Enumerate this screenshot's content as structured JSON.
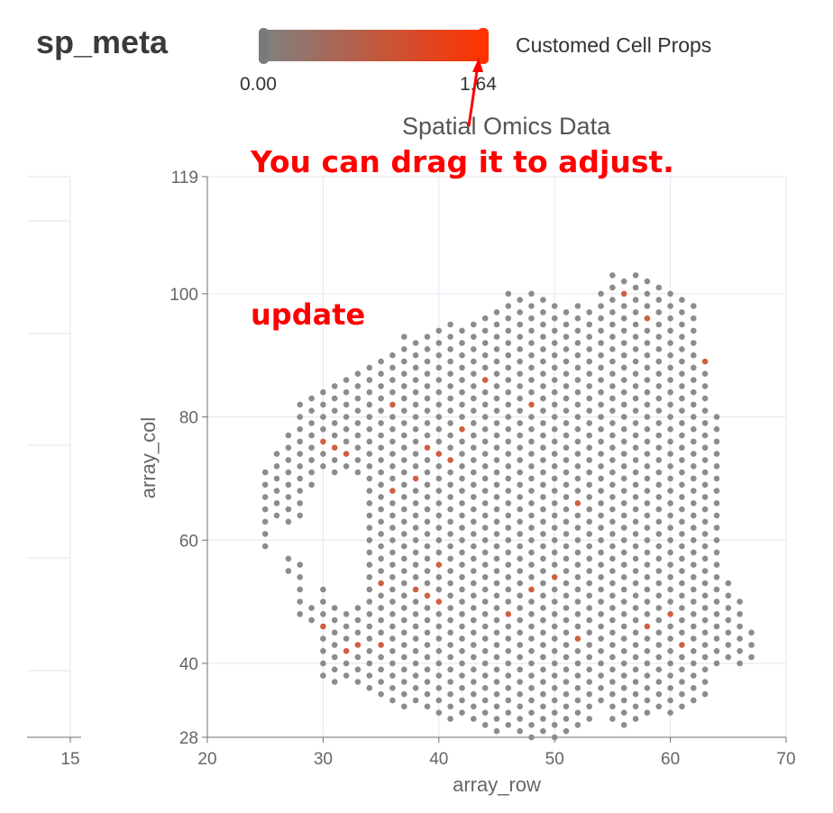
{
  "header": {
    "title": "sp_meta"
  },
  "visual_map": {
    "min_label": "0.00",
    "max_label": "1.64",
    "min": 0,
    "max": 1.64,
    "handle_value": 1.64,
    "legend_text": "Customed Cell Props",
    "color_low": "#808080",
    "color_high": "#ff3300"
  },
  "annotations": {
    "drag_hint": "You can drag it to adjust.",
    "update": "update",
    "color": "#ff0000"
  },
  "chart_data": {
    "type": "scatter",
    "title": "Spatial Omics Data",
    "xlabel": "array_row",
    "ylabel": "array_col",
    "xlim": [
      20,
      70
    ],
    "ylim": [
      28,
      119
    ],
    "xticks": [
      20,
      30,
      40,
      50,
      60,
      70
    ],
    "yticks": [
      28,
      40,
      60,
      80,
      100,
      119
    ],
    "left_panel_xtick": "15",
    "point_colors": {
      "base": "#8c8c8c",
      "highlight": "#d06040"
    },
    "columns": [
      [
        25,
        59,
        71
      ],
      [
        26,
        57,
        75
      ],
      [
        27,
        55,
        77
      ],
      [
        28,
        48,
        82
      ],
      [
        29,
        46,
        83
      ],
      [
        30,
        38,
        84
      ],
      [
        31,
        37,
        85
      ],
      [
        32,
        37,
        86
      ],
      [
        33,
        36,
        88
      ],
      [
        34,
        35,
        89
      ],
      [
        35,
        35,
        90
      ],
      [
        36,
        34,
        91
      ],
      [
        37,
        33,
        93
      ],
      [
        38,
        33,
        93
      ],
      [
        39,
        32,
        94
      ],
      [
        40,
        32,
        95
      ],
      [
        41,
        31,
        95
      ],
      [
        42,
        31,
        95
      ],
      [
        43,
        30,
        96
      ],
      [
        44,
        30,
        97
      ],
      [
        45,
        29,
        98
      ],
      [
        46,
        29,
        100
      ],
      [
        47,
        28,
        99
      ],
      [
        48,
        28,
        100
      ],
      [
        49,
        28,
        99
      ],
      [
        50,
        28,
        99
      ],
      [
        51,
        28,
        98
      ],
      [
        52,
        29,
        98
      ],
      [
        53,
        31,
        98
      ],
      [
        54,
        33,
        101
      ],
      [
        55,
        30,
        103
      ],
      [
        56,
        30,
        102
      ],
      [
        57,
        31,
        103
      ],
      [
        58,
        32,
        102
      ],
      [
        59,
        32,
        101
      ],
      [
        60,
        32,
        100
      ],
      [
        61,
        32,
        99
      ],
      [
        62,
        33,
        98
      ],
      [
        63,
        34,
        89
      ],
      [
        64,
        39,
        80
      ],
      [
        65,
        40,
        54
      ],
      [
        66,
        40,
        50
      ],
      [
        67,
        41,
        45
      ]
    ],
    "holes": [
      {
        "row": [
          29,
          33
        ],
        "col": [
          50,
          70
        ]
      },
      {
        "row": [
          26,
          29
        ],
        "col": [
          58,
          62
        ]
      }
    ],
    "highlighted": [
      [
        32,
        74
      ],
      [
        32,
        70
      ],
      [
        33,
        72
      ],
      [
        30,
        76
      ],
      [
        31,
        75
      ],
      [
        39,
        75
      ],
      [
        40,
        74
      ],
      [
        41,
        73
      ],
      [
        38,
        70
      ],
      [
        36,
        68
      ],
      [
        30,
        46
      ],
      [
        31,
        44
      ],
      [
        32,
        42
      ],
      [
        33,
        43
      ],
      [
        35,
        43
      ],
      [
        37,
        50
      ],
      [
        38,
        52
      ],
      [
        39,
        51
      ],
      [
        40,
        50
      ],
      [
        41,
        52
      ],
      [
        43,
        54
      ],
      [
        45,
        52
      ],
      [
        46,
        48
      ],
      [
        48,
        52
      ],
      [
        50,
        54
      ],
      [
        47,
        58
      ],
      [
        45,
        64
      ],
      [
        52,
        66
      ],
      [
        55,
        70
      ],
      [
        57,
        72
      ],
      [
        56,
        100
      ],
      [
        57,
        102
      ],
      [
        58,
        96
      ],
      [
        60,
        93
      ],
      [
        63,
        89
      ],
      [
        60,
        48
      ],
      [
        61,
        43
      ],
      [
        58,
        46
      ],
      [
        57,
        30
      ],
      [
        60,
        33
      ],
      [
        51,
        80
      ],
      [
        48,
        82
      ],
      [
        46,
        91
      ],
      [
        55,
        80
      ],
      [
        52,
        44
      ],
      [
        33,
        58
      ],
      [
        35,
        53
      ],
      [
        40,
        56
      ],
      [
        27,
        64
      ],
      [
        28,
        62
      ],
      [
        53,
        88
      ],
      [
        44,
        86
      ],
      [
        42,
        78
      ],
      [
        36,
        82
      ],
      [
        39,
        95
      ]
    ]
  }
}
